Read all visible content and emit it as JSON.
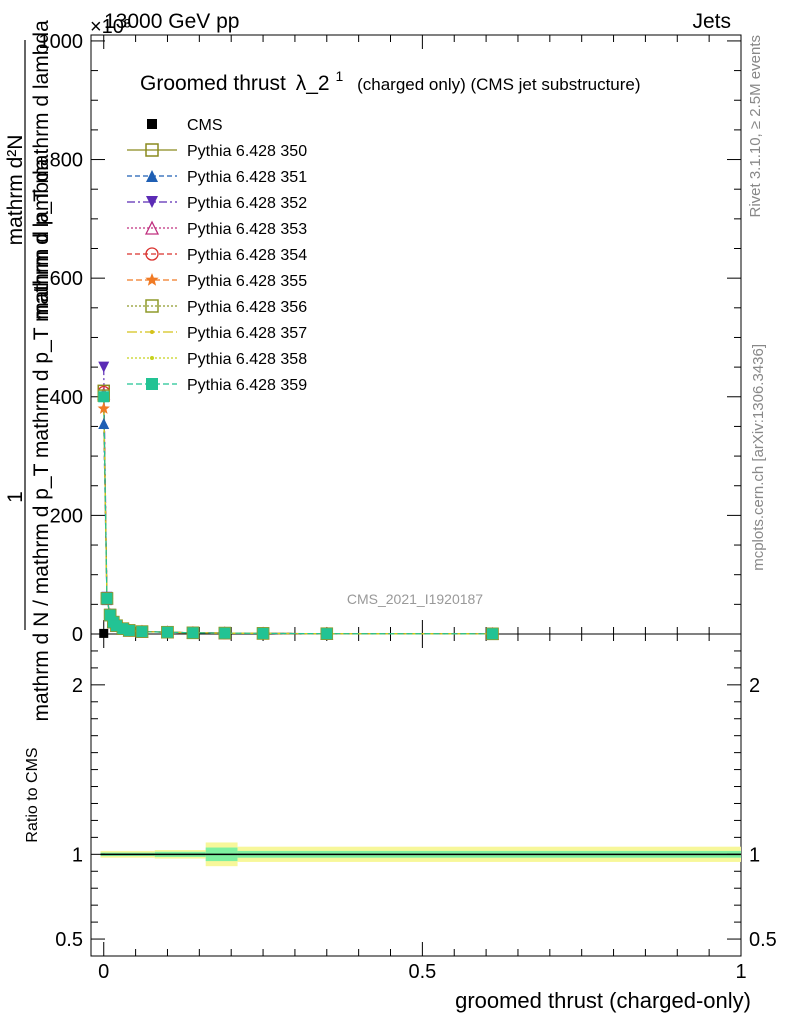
{
  "header": {
    "left": "13000 GeV pp",
    "right": "Jets",
    "exponent": "×10³"
  },
  "side": {
    "rivet": "Rivet 3.1.10, ≥ 2.5M events",
    "mcplots": "mcplots.cern.ch [arXiv:1306.3436]"
  },
  "watermark": "CMS_2021_I1920187",
  "colors": {
    "cms": "#000000",
    "p350": "#8a8a1e",
    "p351": "#1f5fb4",
    "p352": "#5b2bb5",
    "p353": "#c0307f",
    "p354": "#d9302c",
    "p355": "#f07a24",
    "p356": "#8f9a2a",
    "p357": "#d4c21a",
    "p358": "#c6d21c",
    "p359": "#22c394",
    "band_inner": "#7ef0a0",
    "band_outer": "#f7f79a"
  },
  "chart_data": [
    {
      "type": "line",
      "title": "Groomed thrust",
      "title_symbol": "λ_2",
      "title_sup": "1",
      "title_note": "(charged only) (CMS jet substructure)",
      "ylabel_top": "mathrm d²N",
      "ylabel_line1": "mathrm d p_T mathrm d lambda",
      "ylabel_line2": "mathrm d p_T mathrm d lambda",
      "ylabel_main": "1",
      "ylabel_den": "mathrm d N / mathrm d p_T mathrm d p_T mathrm d lambda",
      "ylabel_full": "mathrm d²N / mathrm d p_T mathrm d lambda",
      "ylabel_display": "1 / mathrm d N / mathrm d p_T mathrm d p_T mathrm d lambda",
      "ylim": [
        0,
        1010
      ],
      "xlim": [
        -0.02,
        1.0
      ],
      "yticks": [
        "0",
        "200",
        "400",
        "600",
        "800",
        "1000"
      ],
      "legend": [
        {
          "label": "CMS",
          "marker": "square-filled"
        },
        {
          "label": "Pythia 6.428 350",
          "marker": "square-open"
        },
        {
          "label": "Pythia 6.428 351",
          "marker": "triangle-up"
        },
        {
          "label": "Pythia 6.428 352",
          "marker": "triangle-down"
        },
        {
          "label": "Pythia 6.428 353",
          "marker": "triangle-open"
        },
        {
          "label": "Pythia 6.428 354",
          "marker": "circle-open"
        },
        {
          "label": "Pythia 6.428 355",
          "marker": "star"
        },
        {
          "label": "Pythia 6.428 356",
          "marker": "square-open"
        },
        {
          "label": "Pythia 6.428 357",
          "marker": "dot"
        },
        {
          "label": "Pythia 6.428 358",
          "marker": "dot"
        },
        {
          "label": "Pythia 6.428 359",
          "marker": "square-filled"
        }
      ],
      "x": [
        0.0,
        0.005,
        0.01,
        0.015,
        0.02,
        0.03,
        0.04,
        0.06,
        0.1,
        0.14,
        0.19,
        0.25,
        0.35,
        0.61
      ],
      "series": [
        {
          "name": "Pythia 6.428 350",
          "values": [
            410,
            60,
            32,
            20,
            14,
            9,
            6,
            4,
            3,
            2,
            1.5,
            1,
            0.5,
            0.3
          ]
        },
        {
          "name": "Pythia 6.428 351",
          "values": [
            355,
            58,
            31,
            20,
            14,
            9,
            6,
            4,
            3,
            2,
            1.5,
            1,
            0.5,
            0.3
          ]
        },
        {
          "name": "Pythia 6.428 352",
          "values": [
            450,
            62,
            33,
            21,
            14,
            9,
            6,
            4,
            3,
            2,
            1.5,
            1,
            0.5,
            0.3
          ]
        },
        {
          "name": "Pythia 6.428 353",
          "values": [
            405,
            60,
            32,
            20,
            14,
            9,
            6,
            4,
            3,
            2,
            1.5,
            1,
            0.5,
            0.3
          ]
        },
        {
          "name": "Pythia 6.428 354",
          "values": [
            408,
            60,
            32,
            20,
            14,
            9,
            6,
            4,
            3,
            2,
            1.5,
            1,
            0.5,
            0.3
          ]
        },
        {
          "name": "Pythia 6.428 355",
          "values": [
            380,
            59,
            31,
            20,
            14,
            9,
            6,
            4,
            3,
            2,
            1.5,
            1,
            0.5,
            0.3
          ]
        },
        {
          "name": "Pythia 6.428 356",
          "values": [
            402,
            60,
            32,
            20,
            14,
            9,
            6,
            4,
            3,
            2,
            1.5,
            1,
            0.5,
            0.3
          ]
        },
        {
          "name": "Pythia 6.428 357",
          "values": [
            395,
            60,
            32,
            20,
            14,
            9,
            6,
            4,
            3,
            2,
            1.5,
            1,
            0.5,
            0.3
          ]
        },
        {
          "name": "Pythia 6.428 358",
          "values": [
            398,
            60,
            32,
            20,
            14,
            9,
            6,
            4,
            3,
            2,
            1.5,
            1,
            0.5,
            0.3
          ]
        },
        {
          "name": "Pythia 6.428 359",
          "values": [
            400,
            60,
            32,
            20,
            14,
            9,
            6,
            4,
            3,
            2,
            1.5,
            1,
            0.5,
            0.3
          ]
        }
      ],
      "cms": {
        "x": [
          0.0
        ],
        "values": [
          1
        ]
      }
    },
    {
      "type": "line",
      "ylabel": "Ratio to CMS",
      "xlabel": "groomed thrust (charged-only)",
      "ylim": [
        0.4,
        2.3
      ],
      "yticks": [
        "0.5",
        "1",
        "2"
      ],
      "xticks": [
        "0",
        "0.5",
        "1"
      ],
      "ratio_line": 1.0,
      "bands": [
        {
          "x0": -0.005,
          "x1": 0.08,
          "inner": [
            0.99,
            1.01
          ],
          "outer": [
            0.98,
            1.02
          ]
        },
        {
          "x0": 0.08,
          "x1": 0.16,
          "inner": [
            0.985,
            1.015
          ],
          "outer": [
            0.975,
            1.025
          ]
        },
        {
          "x0": 0.16,
          "x1": 0.21,
          "inner": [
            0.96,
            1.04
          ],
          "outer": [
            0.93,
            1.07
          ]
        },
        {
          "x0": 0.21,
          "x1": 1.0,
          "inner": [
            0.98,
            1.02
          ],
          "outer": [
            0.955,
            1.045
          ]
        }
      ]
    }
  ]
}
